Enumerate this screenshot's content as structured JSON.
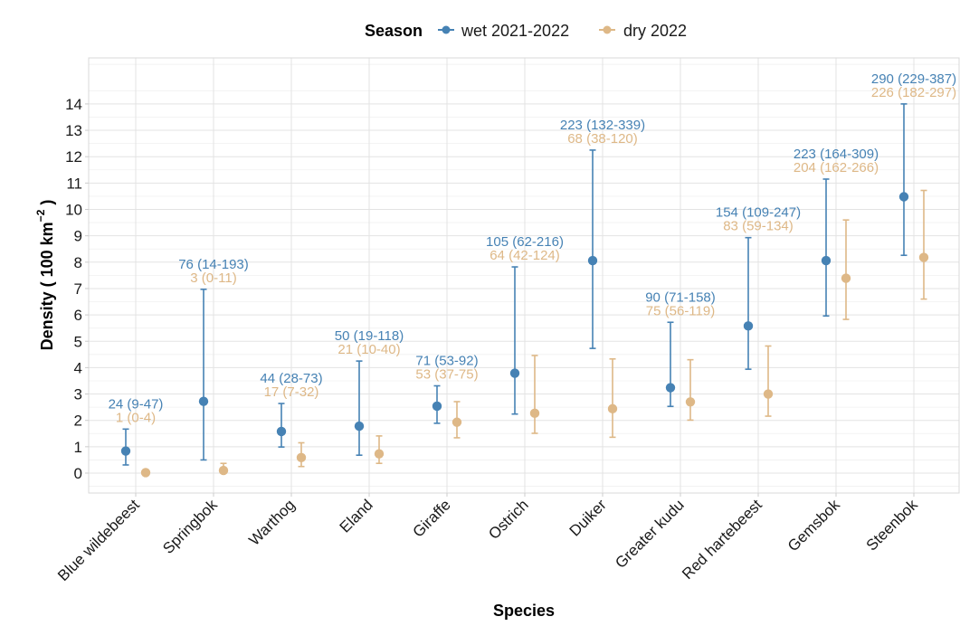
{
  "chart_data": {
    "type": "scatter",
    "subtype": "point-with-errorbars",
    "title": "",
    "xlabel": "Species",
    "ylabel_main": "Density ( 100 km",
    "ylabel_sup": "−2",
    "ylabel_close": " )",
    "ylim": [
      -0.8,
      15.7
    ],
    "yticks": [
      0,
      1,
      2,
      3,
      4,
      5,
      6,
      7,
      8,
      9,
      10,
      11,
      12,
      13,
      14
    ],
    "grid": true,
    "legend": {
      "title": "Season",
      "placement": "top",
      "entries": [
        {
          "name": "wet 2021-2022",
          "color": "#4682B4"
        },
        {
          "name": "dry 2022",
          "color": "#DEB887"
        }
      ]
    },
    "categories": [
      "Blue wildebeest",
      "Springbok",
      "Warthog",
      "Eland",
      "Giraffe",
      "Ostrich",
      "Duiker",
      "Greater kudu",
      "Red hartebeest",
      "Gemsbok",
      "Steenbok"
    ],
    "series": [
      {
        "name": "wet 2021-2022",
        "color": "#4682B4",
        "values": [
          0.84,
          2.72,
          1.58,
          1.78,
          2.54,
          3.79,
          8.06,
          3.24,
          5.58,
          8.06,
          10.48
        ],
        "lower": [
          0.31,
          0.5,
          0.99,
          0.68,
          1.89,
          2.24,
          4.73,
          2.53,
          3.94,
          5.96,
          8.26
        ],
        "upper": [
          1.67,
          6.97,
          2.64,
          4.25,
          3.31,
          7.82,
          12.25,
          5.72,
          8.93,
          11.15,
          14.0
        ],
        "labels": [
          "24 (9-47)",
          "76 (14-193)",
          "44 (28-73)",
          "50 (19-118)",
          "71 (53-92)",
          "105 (62-216)",
          "223 (132-339)",
          "90 (71-158)",
          "154 (109-247)",
          "223 (164-309)",
          "290 (229-387)"
        ]
      },
      {
        "name": "dry 2022",
        "color": "#DEB887",
        "values": [
          0.02,
          0.1,
          0.59,
          0.73,
          1.93,
          2.27,
          2.44,
          2.7,
          3.0,
          7.39,
          8.18
        ],
        "lower": [
          0.0,
          0.0,
          0.25,
          0.37,
          1.34,
          1.51,
          1.36,
          2.01,
          2.16,
          5.83,
          6.6
        ],
        "upper": [
          0.1,
          0.37,
          1.15,
          1.41,
          2.71,
          4.46,
          4.33,
          4.3,
          4.82,
          9.6,
          10.72
        ],
        "labels": [
          "1 (0-4)",
          "3 (0-11)",
          "17 (7-32)",
          "21 (10-40)",
          "53 (37-75)",
          "64 (42-124)",
          "68 (38-120)",
          "75 (56-119)",
          "83 (59-134)",
          "204 (162-266)",
          "226 (182-297)"
        ]
      }
    ]
  }
}
